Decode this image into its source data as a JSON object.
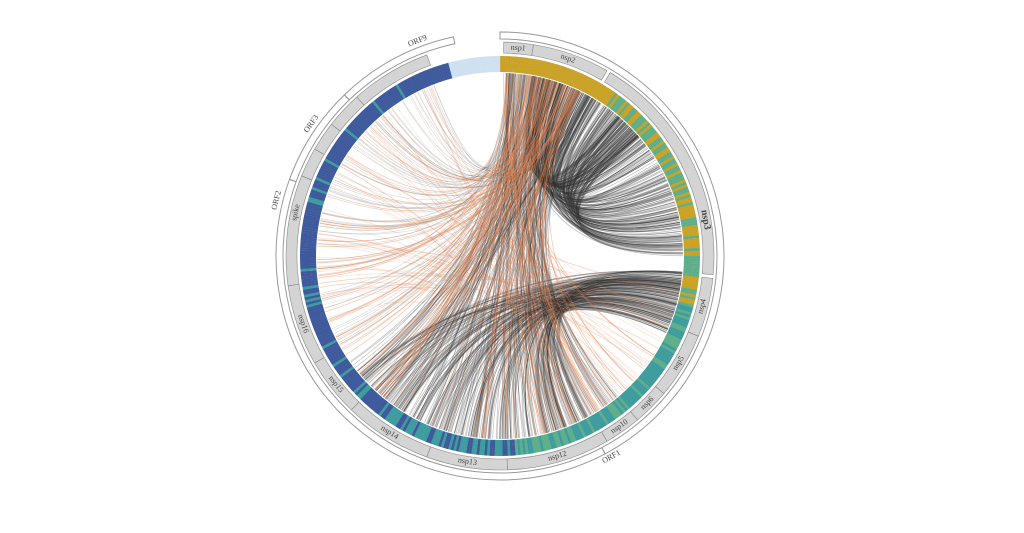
{
  "figure": {
    "colors": {
      "domain_yellow": "#c9a227",
      "domain_green": "#5fae8a",
      "domain_teal": "#3f9c9e",
      "domain_blue": "#3e5a9c",
      "domain_pale": "#cfe1f0",
      "link_dark": "#333333",
      "link_orange": "#e8804a",
      "ring_grey": "#cfcfcf"
    },
    "outer_labels": [
      {
        "id": "nsp1",
        "text": "nsp1"
      },
      {
        "id": "nsp2",
        "text": "nsp2"
      },
      {
        "id": "nsp3",
        "text": "nsp3"
      },
      {
        "id": "nsp4",
        "text": "nsp4"
      },
      {
        "id": "nsp5",
        "text": "nsp5"
      },
      {
        "id": "nsp6",
        "text": "nsp6"
      },
      {
        "id": "nsp10",
        "text": "nsp10"
      },
      {
        "id": "nsp12",
        "text": "nsp12"
      },
      {
        "id": "nsp13",
        "text": "nsp13"
      },
      {
        "id": "nsp14",
        "text": "nsp14"
      },
      {
        "id": "nsp15",
        "text": "nsp15"
      },
      {
        "id": "nsp16",
        "text": "nsp16"
      },
      {
        "id": "ORF2",
        "text": "ORF2"
      },
      {
        "id": "spike",
        "text": "spike"
      },
      {
        "id": "ORF3",
        "text": "ORF3"
      },
      {
        "id": "ORF9",
        "text": "ORF9"
      },
      {
        "id": "ORF1",
        "text": "ORF1"
      }
    ]
  }
}
